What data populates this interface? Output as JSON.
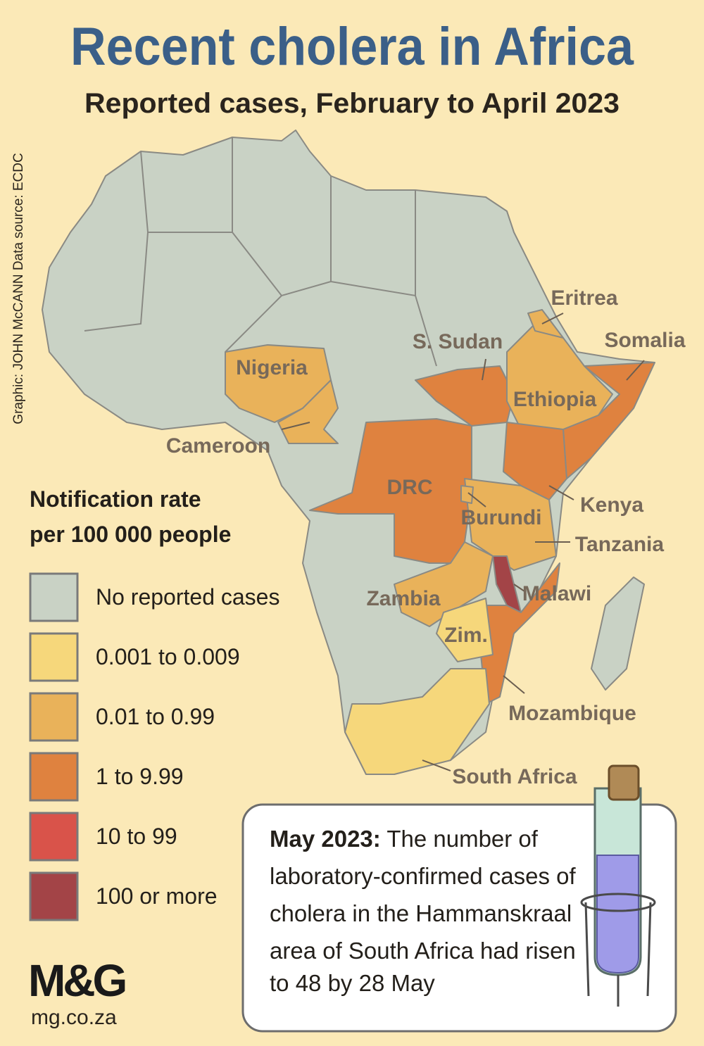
{
  "header": {
    "title": "Recent cholera in Africa",
    "subtitle": "Reported cases, February to April 2023",
    "credit": "Graphic: JOHN McCANN  Data source: ECDC"
  },
  "legend": {
    "title_lines": [
      "Notification rate",
      "per 100 000 people"
    ],
    "items": [
      {
        "label": "No reported cases",
        "color": "#c9d2c5"
      },
      {
        "label": "0.001 to 0.009",
        "color": "#f6d77b",
        "countries": [
          "Zim.",
          "South Africa"
        ]
      },
      {
        "label": "0.01 to 0.99",
        "color": "#e9b25a",
        "countries": [
          "Nigeria",
          "Cameroon",
          "Eritrea",
          "Ethiopia",
          "Burundi",
          "Tanzania",
          "Zambia"
        ]
      },
      {
        "label": "1 to 9.99",
        "color": "#df823f",
        "countries": [
          "S. Sudan",
          "Somalia",
          "DRC",
          "Kenya",
          "Mozambique"
        ]
      },
      {
        "label": "10 to 99",
        "color": "#d9534a"
      },
      {
        "label": "100 or more",
        "color": "#a34447",
        "countries": [
          "Malawi"
        ]
      }
    ]
  },
  "callout": {
    "date": "May 2023:",
    "lines": [
      "The number of",
      "laboratory-confirmed cases of",
      "cholera in the Hammanskraal",
      "area of South Africa had risen",
      "to 48 by 28 May"
    ]
  },
  "logo": {
    "brand": "M&G",
    "url": "mg.co.za"
  }
}
